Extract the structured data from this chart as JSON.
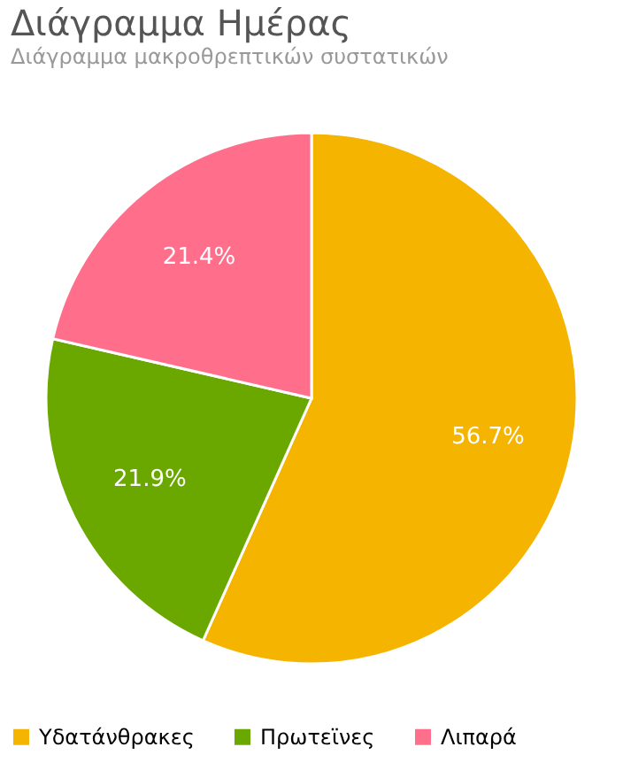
{
  "chart_data": {
    "type": "pie",
    "title": "Διάγραμμα Ημέρας",
    "subtitle": "Διάγραμμα μακροθρεπτικών συστατικών",
    "categories": [
      "Υδατάνθρακες",
      "Πρωτεϊνες",
      "Λιπαρά"
    ],
    "values": [
      56.7,
      21.9,
      21.4
    ],
    "colors": [
      "#f4b400",
      "#6aa800",
      "#ff6f8c"
    ],
    "value_labels": [
      "56.7%",
      "21.9%",
      "21.4%"
    ],
    "legend": "bottom"
  }
}
